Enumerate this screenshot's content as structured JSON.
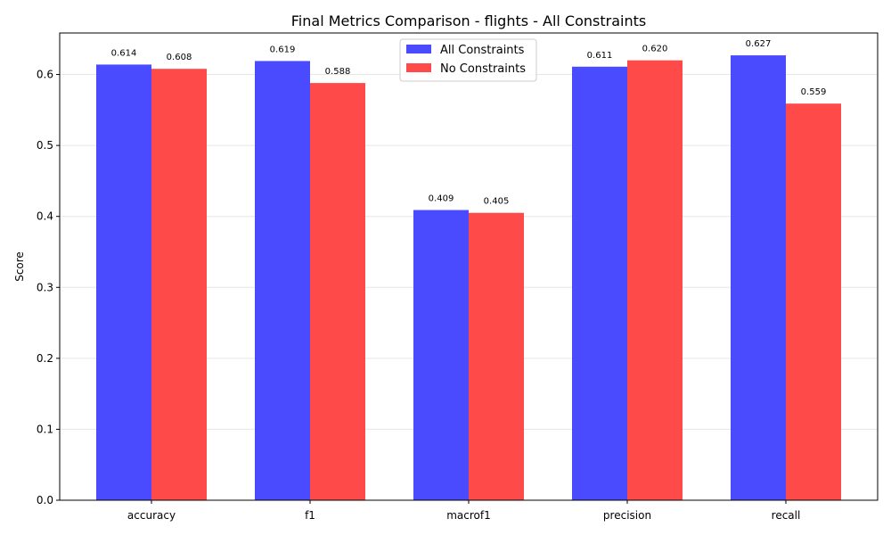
{
  "chart_data": {
    "type": "bar",
    "title": "Final Metrics Comparison - flights - All Constraints",
    "xlabel": "",
    "ylabel": "Score",
    "categories": [
      "accuracy",
      "f1",
      "macrof1",
      "precision",
      "recall"
    ],
    "series": [
      {
        "name": "All Constraints",
        "color": "#4a4aff",
        "values": [
          0.614,
          0.619,
          0.409,
          0.611,
          0.627
        ],
        "labels": [
          "0.614",
          "0.619",
          "0.409",
          "0.611",
          "0.627"
        ]
      },
      {
        "name": "No Constraints",
        "color": "#ff4a4a",
        "values": [
          0.608,
          0.588,
          0.405,
          0.62,
          0.559
        ],
        "labels": [
          "0.608",
          "0.588",
          "0.405",
          "0.620",
          "0.559"
        ]
      }
    ],
    "ylim": [
      0,
      0.6585
    ],
    "yticks": [
      "0.0",
      "0.1",
      "0.2",
      "0.3",
      "0.4",
      "0.5",
      "0.6"
    ],
    "grid": "horizontal",
    "legend_position": "top-center"
  }
}
